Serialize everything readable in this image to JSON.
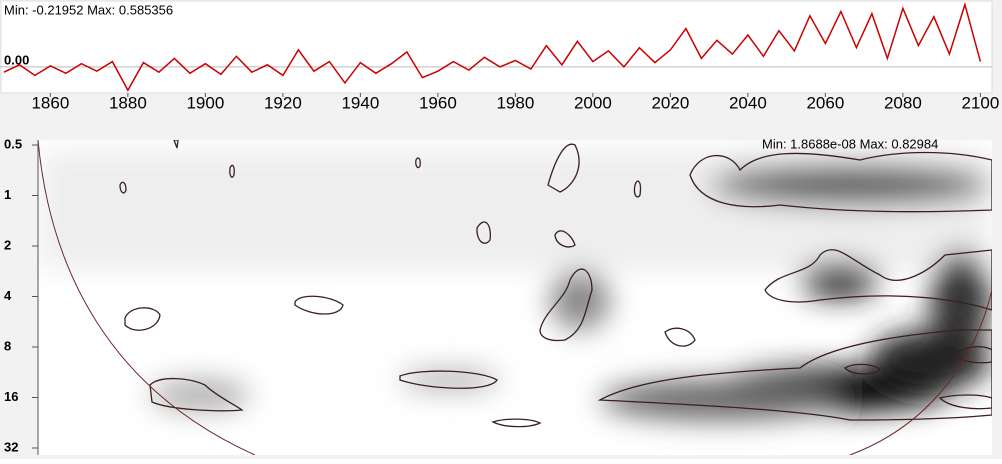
{
  "chart_data": [
    {
      "type": "line",
      "stats": "Min: -0.21952  Max: 0.585356",
      "x": [
        1848,
        1852,
        1856,
        1860,
        1864,
        1868,
        1872,
        1876,
        1880,
        1884,
        1888,
        1892,
        1896,
        1900,
        1904,
        1908,
        1912,
        1916,
        1920,
        1924,
        1928,
        1932,
        1936,
        1940,
        1944,
        1948,
        1952,
        1956,
        1960,
        1964,
        1968,
        1972,
        1976,
        1980,
        1984,
        1988,
        1992,
        1996,
        2000,
        2004,
        2008,
        2012,
        2016,
        2020,
        2024,
        2028,
        2032,
        2036,
        2040,
        2044,
        2048,
        2052,
        2056,
        2060,
        2064,
        2068,
        2072,
        2076,
        2080,
        2084,
        2088,
        2092,
        2096,
        2100
      ],
      "series": [
        {
          "color": "#cc0000",
          "values": [
            -0.05,
            0.02,
            -0.08,
            0.01,
            -0.06,
            0.03,
            -0.04,
            0.05,
            -0.21952,
            0.04,
            -0.05,
            0.08,
            -0.06,
            0.03,
            -0.07,
            0.1,
            -0.05,
            0.02,
            -0.08,
            0.16,
            -0.04,
            0.05,
            -0.15,
            0.04,
            -0.06,
            0.03,
            0.14,
            -0.1,
            -0.04,
            0.05,
            -0.03,
            0.09,
            0.0,
            0.06,
            -0.02,
            0.2,
            0.02,
            0.24,
            0.05,
            0.15,
            0.0,
            0.18,
            0.04,
            0.16,
            0.36,
            0.08,
            0.25,
            0.12,
            0.3,
            0.1,
            0.34,
            0.15,
            0.48,
            0.22,
            0.52,
            0.18,
            0.5,
            0.08,
            0.55,
            0.2,
            0.47,
            0.12,
            0.585356,
            0.05
          ]
        }
      ],
      "xlim": [
        1847,
        2103
      ],
      "xticks": [
        1860,
        1880,
        1900,
        1920,
        1940,
        1960,
        1980,
        2000,
        2020,
        2040,
        2060,
        2080,
        2100
      ],
      "ylim": [
        -0.245,
        0.6
      ],
      "yticks": [
        {
          "value": 0,
          "label": "0.00"
        }
      ],
      "grid": true
    },
    {
      "type": "heatmap",
      "stats": "Min: 1.8688e-08  Max: 0.82984",
      "ylim": [
        0.5,
        32
      ],
      "yticks": [
        0.5,
        1,
        2,
        4,
        8,
        16,
        32
      ],
      "log_scale": true,
      "invert_y": true
    }
  ]
}
